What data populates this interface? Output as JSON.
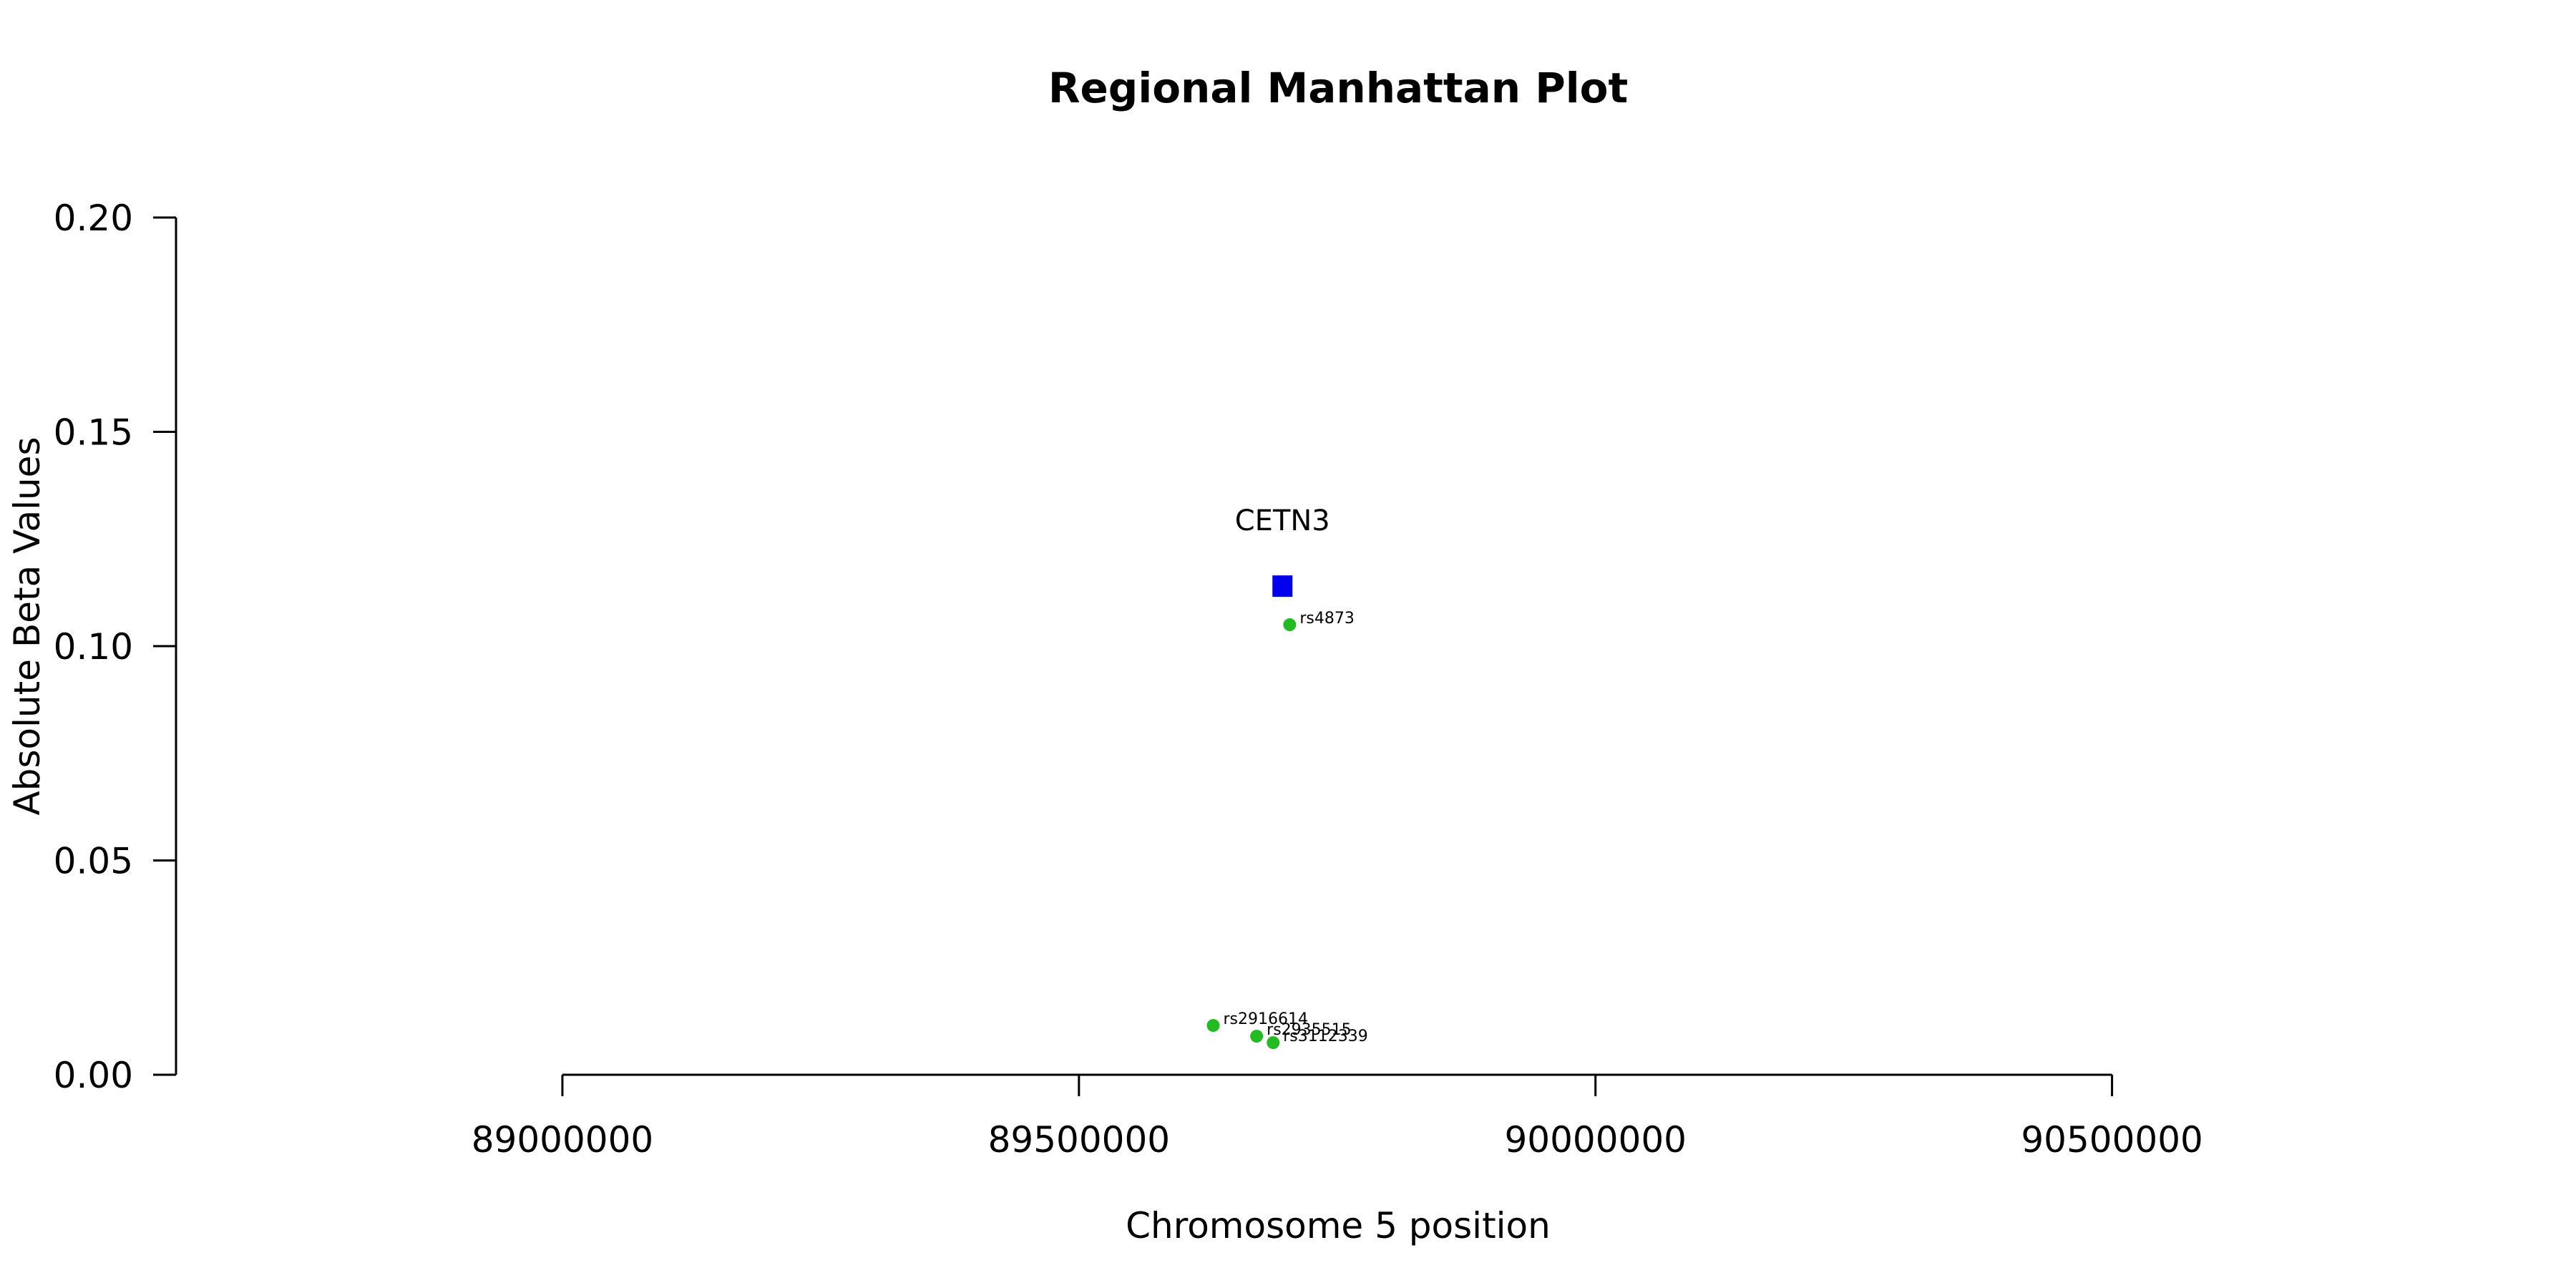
{
  "chart_data": {
    "type": "scatter",
    "title": "Regional Manhattan Plot",
    "xlabel": "Chromosome 5 position",
    "ylabel": "Absolute Beta Values",
    "xlim": [
      88626000,
      90875000
    ],
    "ylim": [
      0,
      0.2
    ],
    "x_ticks": [
      89000000,
      89500000,
      90000000,
      90500000
    ],
    "x_tick_labels": [
      "89000000",
      "89500000",
      "90000000",
      "90500000"
    ],
    "y_ticks": [
      0,
      0.05,
      0.1,
      0.15,
      0.2
    ],
    "y_tick_labels": [
      "0.00",
      "0.05",
      "0.10",
      "0.15",
      "0.20"
    ],
    "grid": false,
    "genes": [
      {
        "name": "CETN3",
        "x": 89697000,
        "y": 0.114,
        "color": "#0000ee",
        "marker": "square"
      }
    ],
    "snps": [
      {
        "name": "rs4873",
        "x": 89704000,
        "y": 0.105,
        "color": "#22bb22"
      },
      {
        "name": "rs2916614",
        "x": 89630000,
        "y": 0.0115,
        "color": "#22bb22"
      },
      {
        "name": "rs2935515",
        "x": 89672000,
        "y": 0.009,
        "color": "#22bb22"
      },
      {
        "name": "rs3112339",
        "x": 89688000,
        "y": 0.0075,
        "color": "#22bb22"
      }
    ]
  }
}
